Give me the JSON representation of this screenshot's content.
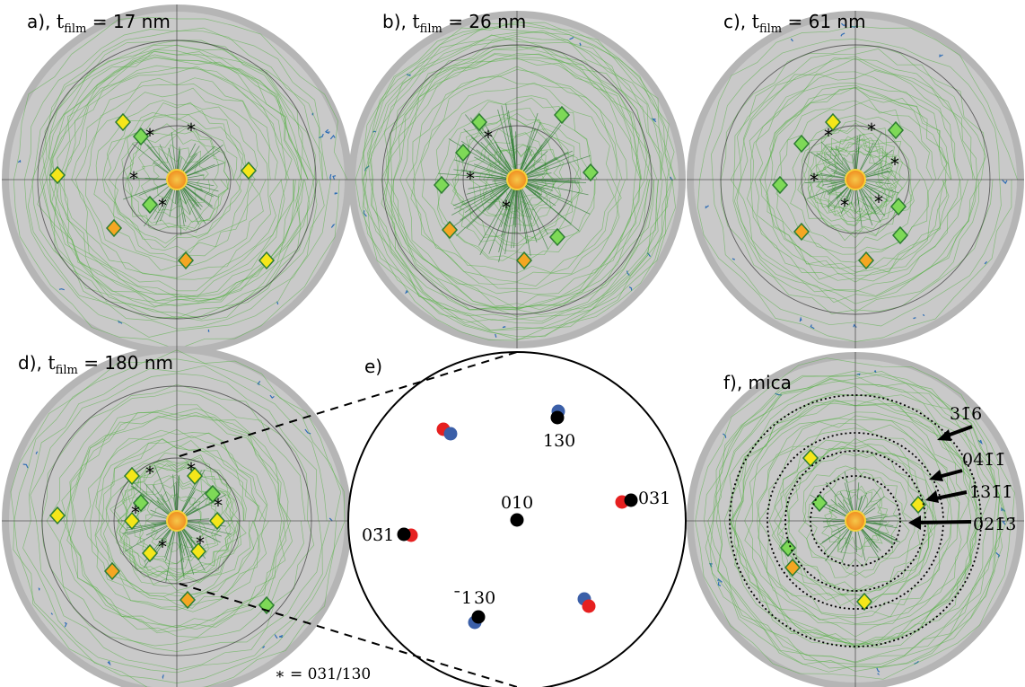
{
  "panels": {
    "a": {
      "letter": "a),",
      "t": "t",
      "sub": "film",
      "value": "= 17 nm"
    },
    "b": {
      "letter": "b),",
      "t": "t",
      "sub": "film",
      "value": "= 26 nm"
    },
    "c": {
      "letter": "c),",
      "t": "t",
      "sub": "film",
      "value": "= 61 nm"
    },
    "d": {
      "letter": "d),",
      "t": "t",
      "sub": "film",
      "value": "= 180 nm"
    },
    "e": {
      "letter": "e)"
    },
    "f": {
      "letter": "f), mica"
    }
  },
  "schematic": {
    "labels": {
      "l130": "130",
      "l010": "010",
      "l031": "031",
      "l031bar": "03̄1",
      "l130bar": "̄1 30"
    }
  },
  "mica_rings": {
    "r1": "31̄6",
    "r2": "041̄1̄",
    "r3": "131̄1̄",
    "r4": "021̄3̄"
  },
  "footnote": "∗ =  031/130",
  "marker_symbol": "*",
  "colors": {
    "disk_border": "#b5b5b5",
    "disk_fill": "#c9c9c9",
    "contour": "#4caf3a",
    "contour_dark": "#2e7d32",
    "peak_yellow": "#f5e61a",
    "peak_orange": "#f5a623",
    "center_orange": "#f7a21b",
    "edge_blue": "#2f6db5",
    "dot_red": "#e62020",
    "dot_blue": "#3b5fa8",
    "dot_black": "#000000"
  }
}
